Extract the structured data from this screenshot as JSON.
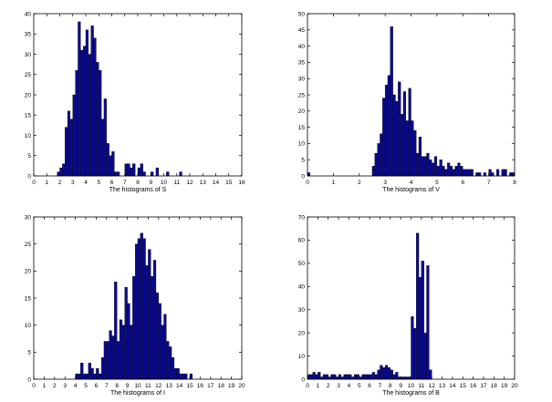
{
  "colors": {
    "bar_fill": "#0b0b8f",
    "bar_edge": "#000000",
    "axis": "#000000",
    "background": "#ffffff"
  },
  "chart_data": [
    {
      "type": "bar",
      "xlabel": "The histograms of S",
      "xlim": [
        0,
        16
      ],
      "ylim": [
        0,
        40
      ],
      "xticks": [
        0,
        1,
        2,
        3,
        4,
        5,
        6,
        7,
        8,
        9,
        10,
        11,
        12,
        13,
        14,
        15,
        16
      ],
      "yticks": [
        0,
        5,
        10,
        15,
        20,
        25,
        30,
        35,
        40
      ],
      "bin_width": 0.2,
      "bins": [
        [
          1.8,
          1
        ],
        [
          2.0,
          2
        ],
        [
          2.2,
          3
        ],
        [
          2.4,
          12
        ],
        [
          2.6,
          16
        ],
        [
          2.8,
          14
        ],
        [
          3.0,
          20
        ],
        [
          3.2,
          26
        ],
        [
          3.4,
          38
        ],
        [
          3.6,
          31
        ],
        [
          3.8,
          32
        ],
        [
          4.0,
          36
        ],
        [
          4.2,
          30
        ],
        [
          4.4,
          37
        ],
        [
          4.6,
          34
        ],
        [
          4.8,
          28
        ],
        [
          5.0,
          26
        ],
        [
          5.2,
          14
        ],
        [
          5.4,
          19
        ],
        [
          5.6,
          8
        ],
        [
          5.8,
          5
        ],
        [
          6.0,
          6
        ],
        [
          6.2,
          1
        ],
        [
          6.4,
          1
        ],
        [
          7.0,
          3
        ],
        [
          7.2,
          3
        ],
        [
          7.4,
          2
        ],
        [
          7.6,
          3
        ],
        [
          8.0,
          2
        ],
        [
          8.2,
          3
        ],
        [
          8.4,
          1
        ],
        [
          9.0,
          1
        ],
        [
          9.4,
          2
        ],
        [
          10.2,
          1
        ],
        [
          11.2,
          1
        ]
      ]
    },
    {
      "type": "bar",
      "xlabel": "The histograms of V",
      "xlim": [
        0,
        8
      ],
      "ylim": [
        0,
        50
      ],
      "xticks": [
        0,
        1,
        2,
        3,
        4,
        5,
        6,
        7,
        8
      ],
      "yticks": [
        0,
        5,
        10,
        15,
        20,
        25,
        30,
        35,
        40,
        45,
        50
      ],
      "bin_width": 0.1,
      "bins": [
        [
          2.5,
          3
        ],
        [
          2.6,
          7
        ],
        [
          2.7,
          10
        ],
        [
          2.8,
          13
        ],
        [
          2.9,
          24
        ],
        [
          3.0,
          28
        ],
        [
          3.1,
          31
        ],
        [
          3.2,
          46
        ],
        [
          3.3,
          25
        ],
        [
          3.4,
          23
        ],
        [
          3.5,
          29
        ],
        [
          3.6,
          19
        ],
        [
          3.7,
          26
        ],
        [
          3.8,
          17
        ],
        [
          3.9,
          27
        ],
        [
          4.0,
          17
        ],
        [
          4.1,
          14
        ],
        [
          4.2,
          7
        ],
        [
          4.3,
          12
        ],
        [
          4.4,
          6
        ],
        [
          4.5,
          6
        ],
        [
          4.6,
          7
        ],
        [
          4.7,
          5
        ],
        [
          4.8,
          4
        ],
        [
          4.9,
          6
        ],
        [
          5.0,
          3
        ],
        [
          5.1,
          5
        ],
        [
          5.2,
          3
        ],
        [
          5.3,
          2
        ],
        [
          5.4,
          4
        ],
        [
          5.5,
          3
        ],
        [
          5.6,
          2
        ],
        [
          5.7,
          3
        ],
        [
          5.8,
          4
        ],
        [
          5.9,
          3
        ],
        [
          6.0,
          2
        ],
        [
          6.1,
          2
        ],
        [
          6.2,
          2
        ],
        [
          6.3,
          2
        ],
        [
          6.5,
          1
        ],
        [
          6.6,
          1
        ],
        [
          6.8,
          1
        ],
        [
          7.0,
          2
        ],
        [
          7.1,
          1
        ],
        [
          7.3,
          2
        ],
        [
          7.5,
          2
        ],
        [
          7.6,
          2
        ],
        [
          7.8,
          1
        ],
        [
          7.9,
          1
        ],
        [
          0.0,
          1
        ]
      ]
    },
    {
      "type": "bar",
      "xlabel": "The histograms of I",
      "xlim": [
        0,
        20
      ],
      "ylim": [
        0,
        30
      ],
      "xticks": [
        0,
        1,
        2,
        3,
        4,
        5,
        6,
        7,
        8,
        9,
        10,
        11,
        12,
        13,
        14,
        15,
        16,
        17,
        18,
        19,
        20
      ],
      "yticks": [
        0,
        5,
        10,
        15,
        20,
        25,
        30
      ],
      "bin_width": 0.25,
      "bins": [
        [
          4.0,
          1
        ],
        [
          4.25,
          1
        ],
        [
          4.5,
          3
        ],
        [
          4.75,
          1
        ],
        [
          5.0,
          1
        ],
        [
          5.25,
          3
        ],
        [
          5.5,
          2
        ],
        [
          5.75,
          1
        ],
        [
          6.0,
          2
        ],
        [
          6.25,
          1
        ],
        [
          6.5,
          4
        ],
        [
          6.75,
          7
        ],
        [
          7.0,
          7
        ],
        [
          7.25,
          9
        ],
        [
          7.5,
          8
        ],
        [
          7.75,
          18
        ],
        [
          8.0,
          7
        ],
        [
          8.25,
          11
        ],
        [
          8.5,
          10
        ],
        [
          8.75,
          17
        ],
        [
          9.0,
          14
        ],
        [
          9.25,
          10
        ],
        [
          9.5,
          19
        ],
        [
          9.75,
          25
        ],
        [
          10.0,
          26
        ],
        [
          10.25,
          27
        ],
        [
          10.5,
          26
        ],
        [
          10.75,
          21
        ],
        [
          11.0,
          24
        ],
        [
          11.25,
          19
        ],
        [
          11.5,
          22
        ],
        [
          11.75,
          16
        ],
        [
          12.0,
          14
        ],
        [
          12.25,
          10
        ],
        [
          12.5,
          12
        ],
        [
          12.75,
          7
        ],
        [
          13.0,
          6
        ],
        [
          13.25,
          4
        ],
        [
          13.5,
          2
        ],
        [
          13.75,
          2
        ],
        [
          14.0,
          1
        ],
        [
          14.25,
          1
        ],
        [
          14.5,
          1
        ],
        [
          15.0,
          1
        ]
      ]
    },
    {
      "type": "bar",
      "xlabel": "The histograms of B",
      "xlim": [
        0,
        20
      ],
      "ylim": [
        0,
        70
      ],
      "xticks": [
        0,
        1,
        2,
        3,
        4,
        5,
        6,
        7,
        8,
        9,
        10,
        11,
        12,
        13,
        14,
        15,
        16,
        17,
        18,
        19,
        20
      ],
      "yticks": [
        0,
        10,
        20,
        30,
        40,
        50,
        60,
        70
      ],
      "bin_width": 0.25,
      "bins": [
        [
          0.0,
          2
        ],
        [
          0.25,
          2
        ],
        [
          0.5,
          3
        ],
        [
          0.75,
          2
        ],
        [
          1.0,
          3
        ],
        [
          1.25,
          1
        ],
        [
          1.5,
          2
        ],
        [
          1.75,
          2
        ],
        [
          2.0,
          1
        ],
        [
          2.25,
          2
        ],
        [
          2.5,
          2
        ],
        [
          2.75,
          1
        ],
        [
          3.0,
          2
        ],
        [
          3.25,
          1
        ],
        [
          3.5,
          2
        ],
        [
          3.75,
          2
        ],
        [
          4.0,
          2
        ],
        [
          4.25,
          1
        ],
        [
          4.5,
          2
        ],
        [
          4.75,
          2
        ],
        [
          5.0,
          1
        ],
        [
          5.25,
          2
        ],
        [
          5.5,
          2
        ],
        [
          5.75,
          2
        ],
        [
          6.0,
          2
        ],
        [
          6.25,
          3
        ],
        [
          6.5,
          2
        ],
        [
          6.75,
          4
        ],
        [
          7.0,
          6
        ],
        [
          7.25,
          5
        ],
        [
          7.5,
          6
        ],
        [
          7.75,
          5
        ],
        [
          8.0,
          4
        ],
        [
          8.25,
          2
        ],
        [
          8.5,
          3
        ],
        [
          8.75,
          1
        ],
        [
          9.0,
          1
        ],
        [
          9.25,
          1
        ],
        [
          9.5,
          1
        ],
        [
          9.75,
          1
        ],
        [
          10.0,
          27
        ],
        [
          10.25,
          22
        ],
        [
          10.5,
          63
        ],
        [
          10.75,
          44
        ],
        [
          11.0,
          51
        ],
        [
          11.25,
          20
        ],
        [
          11.5,
          49
        ],
        [
          11.75,
          4
        ]
      ]
    }
  ]
}
